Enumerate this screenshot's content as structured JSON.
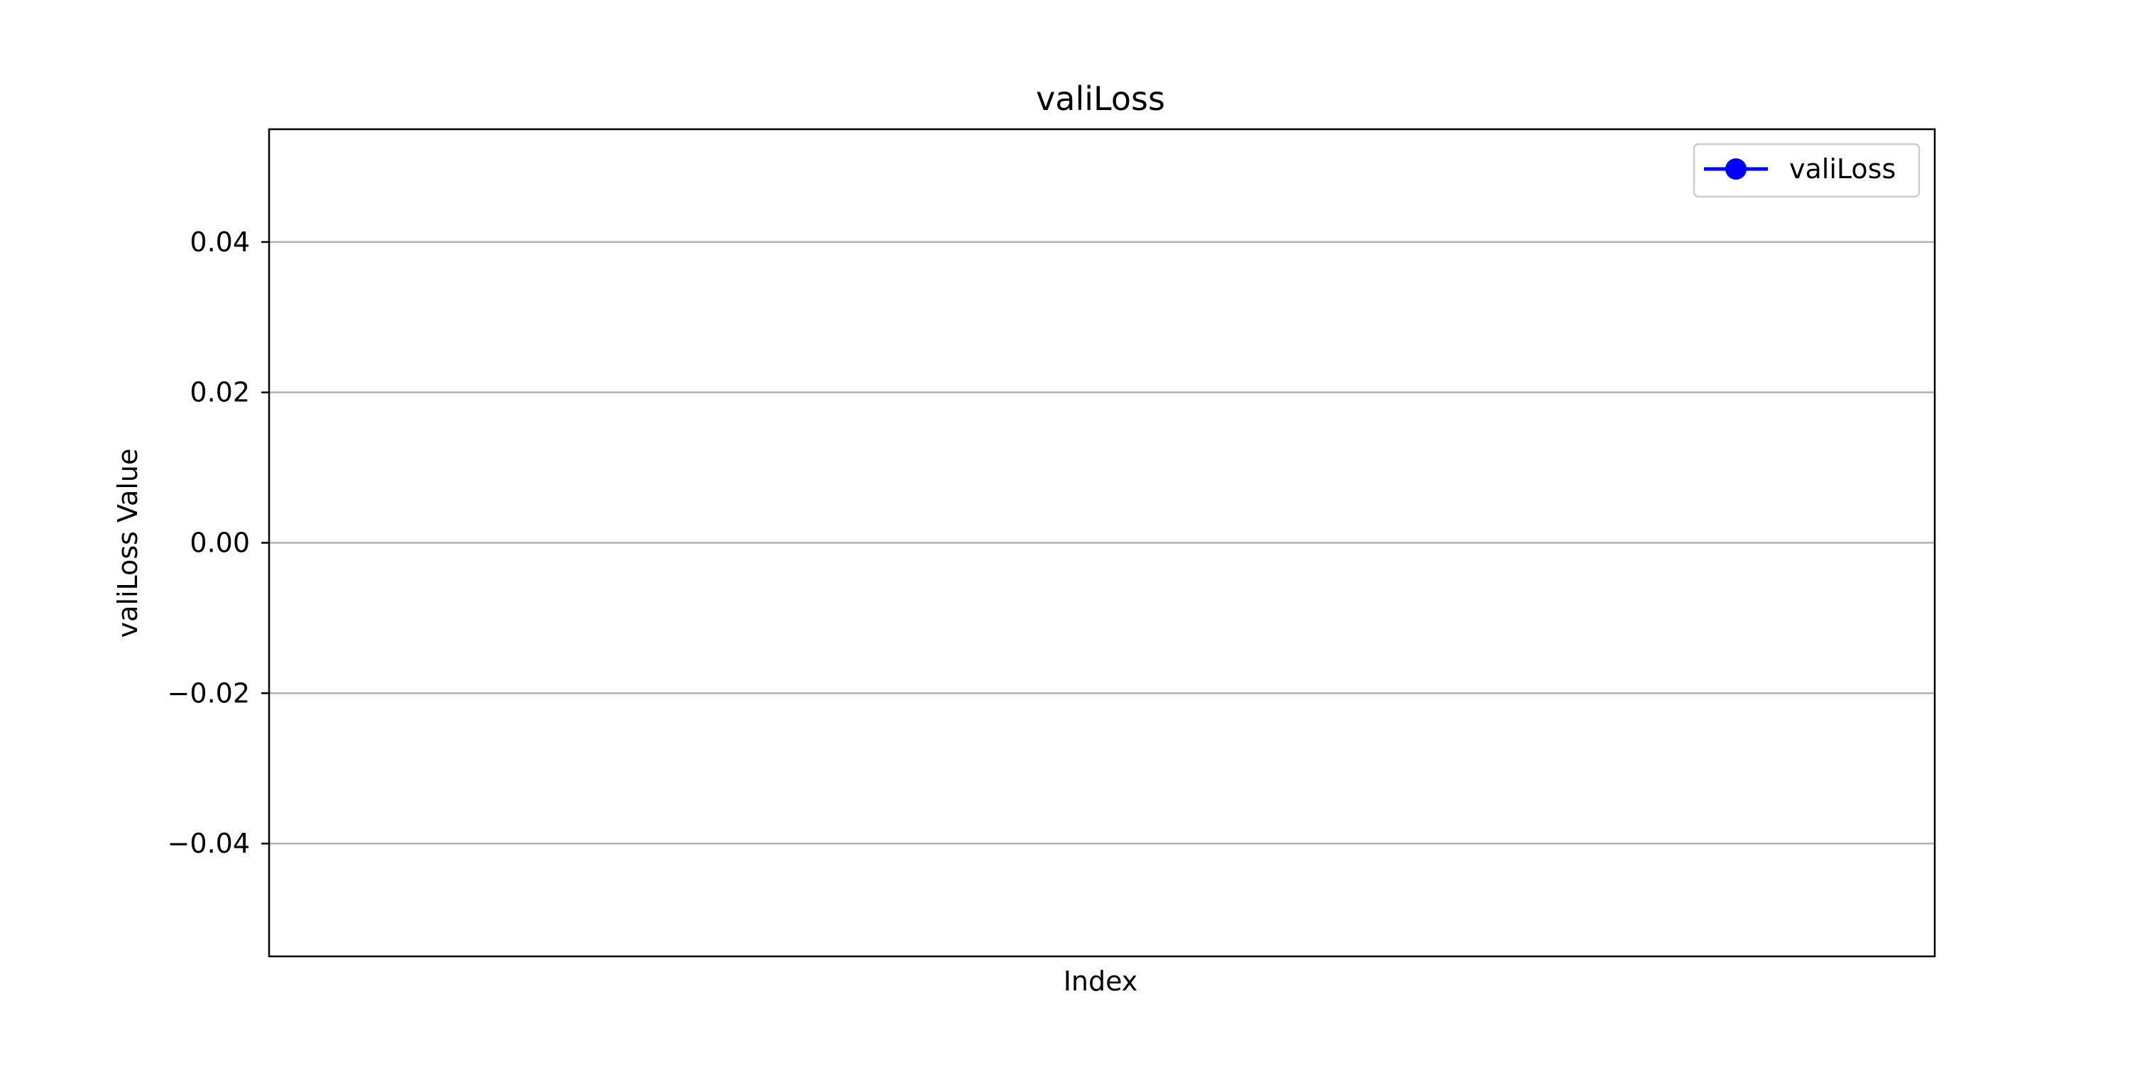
{
  "chart_data": {
    "type": "line",
    "title": "valiLoss",
    "xlabel": "Index",
    "ylabel": "valiLoss Value",
    "x": [],
    "series": [
      {
        "name": "valiLoss",
        "values": [],
        "color": "#0000ff",
        "marker": "circle"
      }
    ],
    "ylim": [
      -0.055,
      0.055
    ],
    "yticks": [
      0.04,
      0.02,
      0.0,
      -0.02,
      -0.04
    ],
    "ytick_labels": [
      "0.04",
      "0.02",
      "0.00",
      "−0.02",
      "−0.04"
    ],
    "grid": "horizontal",
    "grid_color": "#b0b0b0",
    "legend_position": "top-right"
  }
}
